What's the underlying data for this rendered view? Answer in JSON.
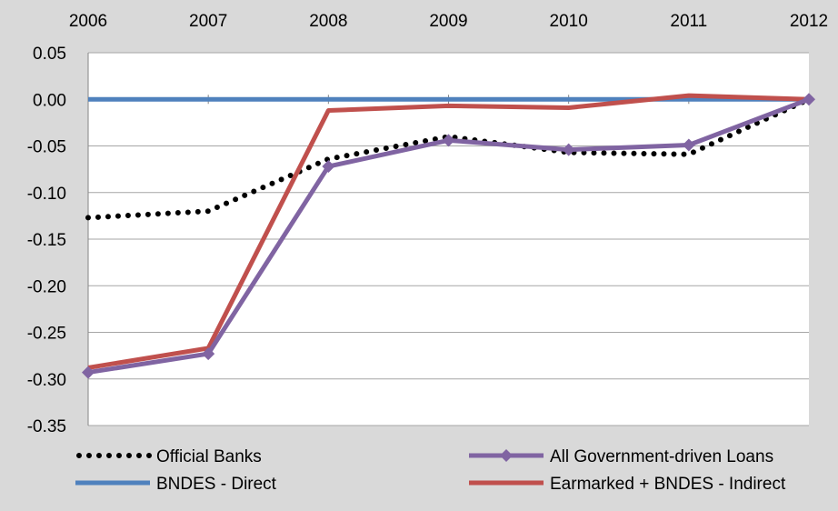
{
  "chart_data": {
    "type": "line",
    "title": "",
    "xlabel": "",
    "ylabel": "",
    "x": [
      "2006",
      "2007",
      "2008",
      "2009",
      "2010",
      "2011",
      "2012"
    ],
    "xaxis_position": "top",
    "ylim": [
      -0.35,
      0.05
    ],
    "yticks": [
      0.05,
      0.0,
      -0.05,
      -0.1,
      -0.15,
      -0.2,
      -0.25,
      -0.3,
      -0.35
    ],
    "ytick_labels": [
      "0.05",
      "0.00",
      "-0.05",
      "-0.10",
      "-0.15",
      "-0.20",
      "-0.25",
      "-0.30",
      "-0.35"
    ],
    "grid": "horizontal",
    "legend_position": "bottom",
    "series": [
      {
        "name": "Official Banks",
        "color": "#000000",
        "style": "dotted",
        "values": [
          -0.127,
          -0.12,
          -0.064,
          -0.04,
          -0.057,
          -0.059,
          0.0
        ]
      },
      {
        "name": "BNDES - Direct",
        "color": "#4f81bd",
        "style": "solid",
        "values": [
          0.0,
          0.0,
          0.0,
          0.0,
          0.0,
          0.0,
          0.0
        ]
      },
      {
        "name": "All Government-driven Loans",
        "color": "#8064a2",
        "style": "solid-diamond",
        "values": [
          -0.293,
          -0.273,
          -0.072,
          -0.044,
          -0.054,
          -0.049,
          0.0
        ]
      },
      {
        "name": "Earmarked + BNDES - Indirect",
        "color": "#c0504d",
        "style": "solid",
        "values": [
          -0.288,
          -0.267,
          -0.012,
          -0.007,
          -0.009,
          0.004,
          0.0
        ]
      }
    ]
  }
}
